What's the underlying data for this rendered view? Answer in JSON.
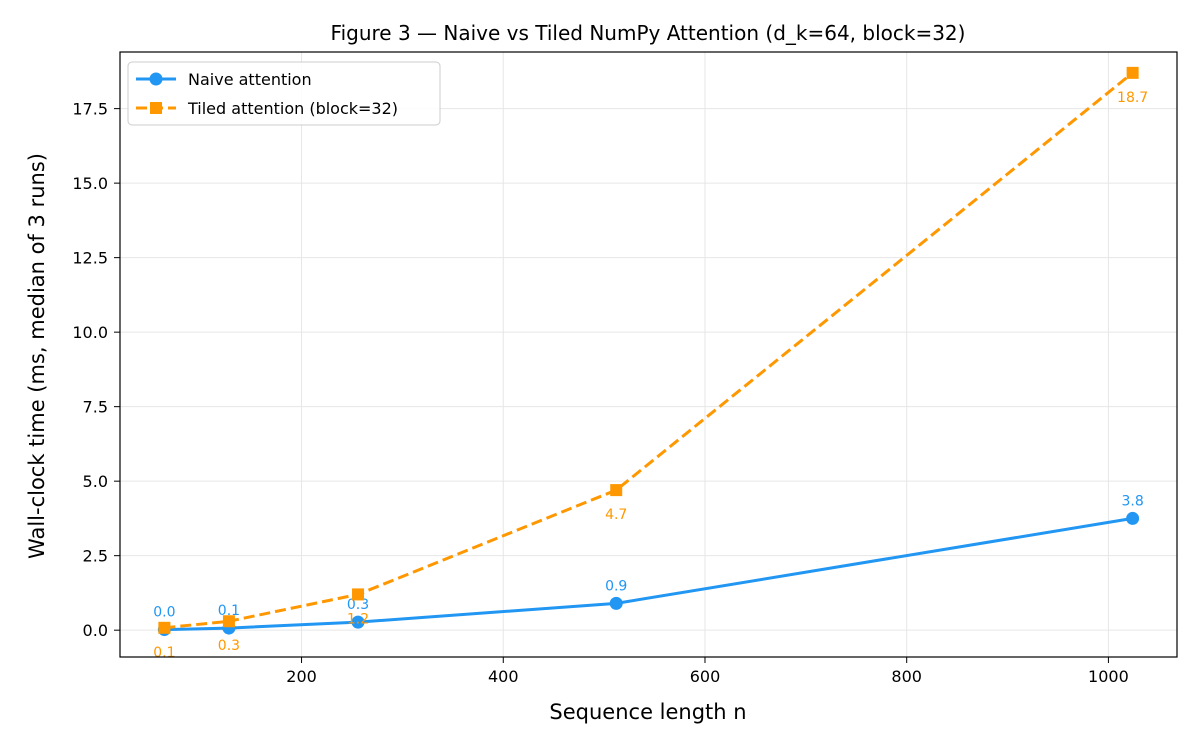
{
  "chart_data": {
    "type": "line",
    "title": "Figure 3 — Naive vs Tiled NumPy Attention  (d_k=64, block=32)",
    "xlabel": "Sequence length  n",
    "ylabel": "Wall-clock time  (ms, median of 3 runs)",
    "x": [
      64,
      128,
      256,
      512,
      1024
    ],
    "xlim": [
      20,
      1068
    ],
    "ylim": [
      -0.9,
      19.4
    ],
    "xticks": [
      200,
      400,
      600,
      800,
      1000
    ],
    "xtick_labels": [
      "200",
      "400",
      "600",
      "800",
      "1000"
    ],
    "yticks": [
      0,
      2.5,
      5,
      7.5,
      10,
      12.5,
      15,
      17.5
    ],
    "ytick_labels": [
      "0.0",
      "2.5",
      "5.0",
      "7.5",
      "10.0",
      "12.5",
      "15.0",
      "17.5"
    ],
    "grid": true,
    "legend_position": "top-left",
    "series": [
      {
        "name": "Naive attention",
        "color": "#2196F3",
        "marker": "circle",
        "line_style": "solid",
        "values": [
          0.02,
          0.07,
          0.27,
          0.9,
          3.75
        ],
        "labels": [
          "0.0",
          "0.1",
          "0.3",
          "0.9",
          "3.8"
        ],
        "label_position": "above"
      },
      {
        "name": "Tiled attention (block=32)",
        "color": "#FF9800",
        "marker": "square",
        "line_style": "dashed",
        "values": [
          0.08,
          0.3,
          1.2,
          4.7,
          18.7
        ],
        "labels": [
          "0.1",
          "0.3",
          "1.2",
          "4.7",
          "18.7"
        ],
        "label_position": "below"
      }
    ]
  }
}
